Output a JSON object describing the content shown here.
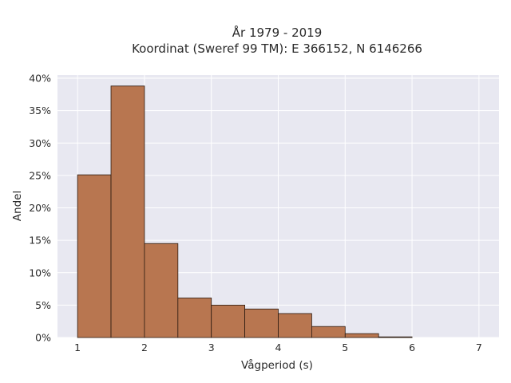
{
  "chart_data": {
    "type": "bar",
    "title": [
      "År 1979 - 2019",
      "Koordinat (Sweref 99 TM): E 366152, N 6146266"
    ],
    "xlabel": "Vågperiod (s)",
    "ylabel": "Andel",
    "xlim": [
      0.7,
      7.3
    ],
    "ylim": [
      0,
      40.5
    ],
    "x_ticks": [
      1,
      2,
      3,
      4,
      5,
      6,
      7
    ],
    "y_ticks": [
      0,
      5,
      10,
      15,
      20,
      25,
      30,
      35,
      40
    ],
    "y_tick_labels": [
      "0%",
      "5%",
      "10%",
      "15%",
      "20%",
      "25%",
      "30%",
      "35%",
      "40%"
    ],
    "bin_width": 0.5,
    "bins": [
      {
        "x0": 1.0,
        "value": 25.1
      },
      {
        "x0": 1.5,
        "value": 38.8
      },
      {
        "x0": 2.0,
        "value": 14.5
      },
      {
        "x0": 2.5,
        "value": 6.1
      },
      {
        "x0": 3.0,
        "value": 5.0
      },
      {
        "x0": 3.5,
        "value": 4.4
      },
      {
        "x0": 4.0,
        "value": 3.7
      },
      {
        "x0": 4.5,
        "value": 1.7
      },
      {
        "x0": 5.0,
        "value": 0.6
      },
      {
        "x0": 5.5,
        "value": 0.1
      }
    ],
    "grid": true,
    "colors": {
      "bar_fill": "#b87650",
      "bar_edge": "#2b1a10",
      "plot_bg": "#e8e8f1",
      "grid": "#ffffff"
    }
  }
}
